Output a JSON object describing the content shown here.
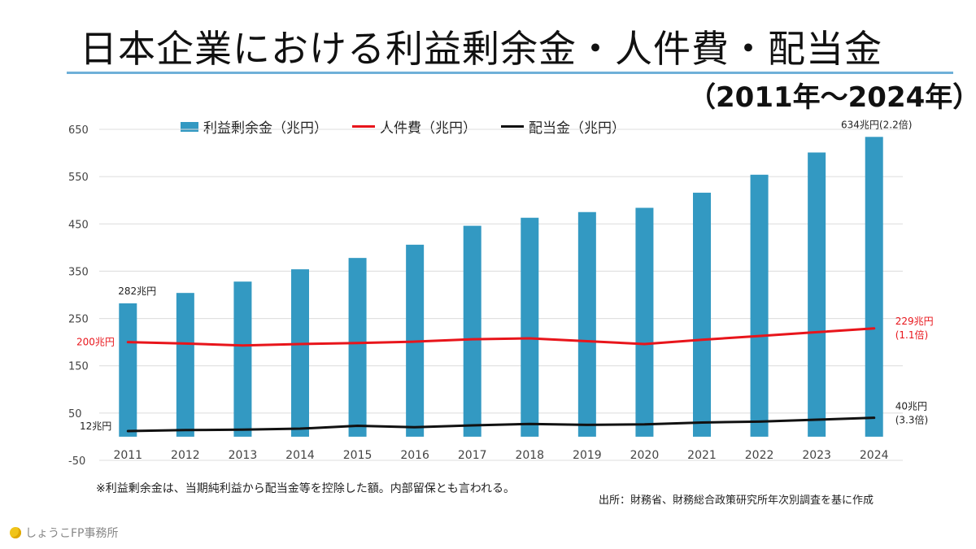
{
  "page": {
    "title": "日本企業における利益剰余金・人件費・配当金",
    "subtitle": "（2011年～2024年）",
    "note": "※利益剰余金は、当期純利益から配当金等を控除した額。内部留保とも言われる。",
    "source": "出所：財務省、財務総合政策研究所年次別調査を基に作成",
    "brand": "しょうこFP事務所"
  },
  "colors": {
    "bar": "#3399c2",
    "labor": "#e8151b",
    "dividend": "#111111",
    "grid": "#dcdcdc",
    "title_rule": "#6fb0d8",
    "annotation_red": "#e8151b",
    "annotation_dark": "#222222"
  },
  "chart_data": {
    "type": "bar+line",
    "categories": [
      "2011",
      "2012",
      "2013",
      "2014",
      "2015",
      "2016",
      "2017",
      "2018",
      "2019",
      "2020",
      "2021",
      "2022",
      "2023",
      "2024"
    ],
    "series": [
      {
        "name": "利益剰余金（兆円）",
        "type": "bar",
        "values": [
          282,
          304,
          328,
          354,
          378,
          406,
          446,
          463,
          475,
          484,
          516,
          554,
          601,
          634
        ]
      },
      {
        "name": "人件費（兆円）",
        "type": "line",
        "values": [
          200,
          197,
          193,
          196,
          198,
          201,
          206,
          208,
          202,
          196,
          205,
          213,
          221,
          229
        ]
      },
      {
        "name": "配当金（兆円）",
        "type": "line",
        "values": [
          12,
          14,
          15,
          17,
          23,
          20,
          24,
          27,
          25,
          26,
          30,
          32,
          36,
          40
        ]
      }
    ],
    "yticks": [
      "650",
      "550",
      "450",
      "350",
      "250",
      "150",
      "50",
      "-50"
    ],
    "ytick_values": [
      650,
      550,
      450,
      350,
      250,
      150,
      50,
      -50
    ],
    "ylim": [
      -50,
      650
    ],
    "grid": true,
    "legend_position": "top",
    "annotations": [
      {
        "text": "282兆円",
        "series": "bar",
        "index": 0,
        "color": "dark"
      },
      {
        "text": "634兆円(2.2倍)",
        "series": "bar",
        "index": 13,
        "color": "dark"
      },
      {
        "text": "200兆円",
        "series": "labor",
        "index": 0,
        "color": "red"
      },
      {
        "text": "229兆円",
        "series": "labor",
        "index": 13,
        "color": "red"
      },
      {
        "text": "(1.1倍)",
        "series": "labor",
        "index": 13,
        "color": "red"
      },
      {
        "text": "12兆円",
        "series": "dividend",
        "index": 0,
        "color": "dark"
      },
      {
        "text": "40兆円",
        "series": "dividend",
        "index": 13,
        "color": "dark"
      },
      {
        "text": "(3.3倍)",
        "series": "dividend",
        "index": 13,
        "color": "dark"
      }
    ]
  }
}
